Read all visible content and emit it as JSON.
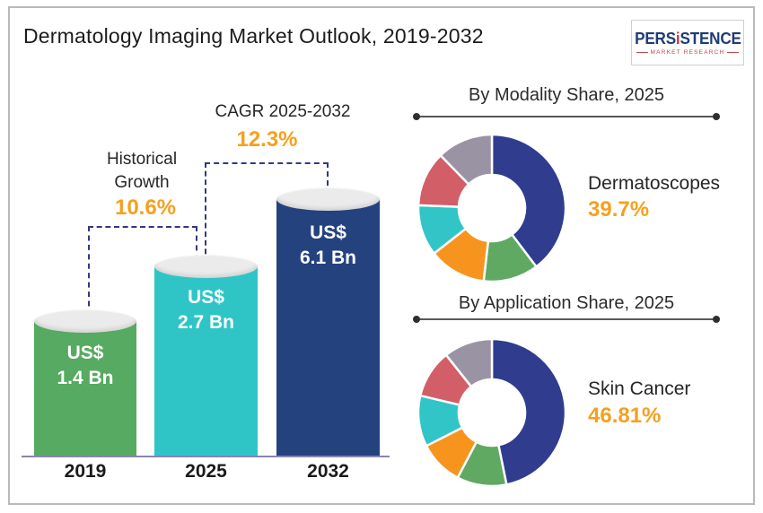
{
  "header": {
    "title": "Dermatology Imaging Market Outlook, 2019-2032",
    "logo": {
      "part1": "PERS",
      "i_letter": "i",
      "part2": "STENCE",
      "subtitle": "MARKET RESEARCH"
    }
  },
  "bar_section": {
    "historical_label": "Historical Growth",
    "historical_value": "10.6%",
    "cagr_label": "CAGR 2025-2032",
    "cagr_value": "12.3%",
    "bars": [
      {
        "year": "2019",
        "line1": "US$",
        "line2": "1.4 Bn"
      },
      {
        "year": "2025",
        "line1": "US$",
        "line2": "2.7 Bn"
      },
      {
        "year": "2032",
        "line1": "US$",
        "line2": "6.1 Bn"
      }
    ]
  },
  "modality_panel": {
    "title": "By Modality Share, 2025",
    "highlight_label": "Dermatoscopes",
    "highlight_value": "39.7%"
  },
  "application_panel": {
    "title": "By Application Share, 2025",
    "highlight_label": "Skin Cancer",
    "highlight_value": "46.81%"
  },
  "colors": {
    "accent_orange": "#f6a01e",
    "dashed_connector": "#32397f",
    "bar_green": "#56aa61",
    "bar_teal": "#2fc5c6",
    "bar_navy": "#24427e",
    "donut_navy": "#303c8e",
    "donut_green": "#5fa963",
    "donut_orange": "#f7941e",
    "donut_teal": "#31c5c8",
    "donut_red": "#d25e67",
    "donut_gray": "#9a93a4",
    "logo_navy": "#1e3d74",
    "logo_red": "#d23737"
  },
  "chart_data": [
    {
      "type": "bar",
      "title": "Dermatology Imaging Market Outlook, 2019-2032",
      "categories": [
        "2019",
        "2025",
        "2032"
      ],
      "values": [
        1.4,
        2.7,
        6.1
      ],
      "unit": "US$ Bn",
      "value_labels": [
        "US$ 1.4 Bn",
        "US$ 2.7 Bn",
        "US$ 6.1 Bn"
      ],
      "colors": [
        "#56aa61",
        "#2fc5c6",
        "#24427e"
      ],
      "annotations": [
        {
          "label": "Historical Growth",
          "value": "10.6%",
          "between": [
            "2019",
            "2025"
          ]
        },
        {
          "label": "CAGR 2025-2032",
          "value": "12.3%",
          "between": [
            "2025",
            "2032"
          ]
        }
      ]
    },
    {
      "type": "donut",
      "title": "By Modality Share, 2025",
      "highlight": {
        "label": "Dermatoscopes",
        "value_text": "39.7%"
      },
      "segments": [
        {
          "label": "Dermatoscopes",
          "value": 39.7,
          "color": "#303c8e"
        },
        {
          "label": null,
          "value": 12.1,
          "color": "#5fa963"
        },
        {
          "label": null,
          "value": 12.6,
          "color": "#f7941e"
        },
        {
          "label": null,
          "value": 11.2,
          "color": "#31c5c8"
        },
        {
          "label": null,
          "value": 12.1,
          "color": "#d25e67"
        },
        {
          "label": null,
          "value": 12.3,
          "color": "#9a93a4"
        }
      ]
    },
    {
      "type": "donut",
      "title": "By Application Share, 2025",
      "highlight": {
        "label": "Skin Cancer",
        "value_text": "46.81%"
      },
      "segments": [
        {
          "label": "Skin Cancer",
          "value": 46.81,
          "color": "#303c8e"
        },
        {
          "label": null,
          "value": 10.9,
          "color": "#5fa963"
        },
        {
          "label": null,
          "value": 9.8,
          "color": "#f7941e"
        },
        {
          "label": null,
          "value": 11.2,
          "color": "#31c5c8"
        },
        {
          "label": null,
          "value": 10.6,
          "color": "#d25e67"
        },
        {
          "label": null,
          "value": 10.69,
          "color": "#9a93a4"
        }
      ]
    }
  ]
}
